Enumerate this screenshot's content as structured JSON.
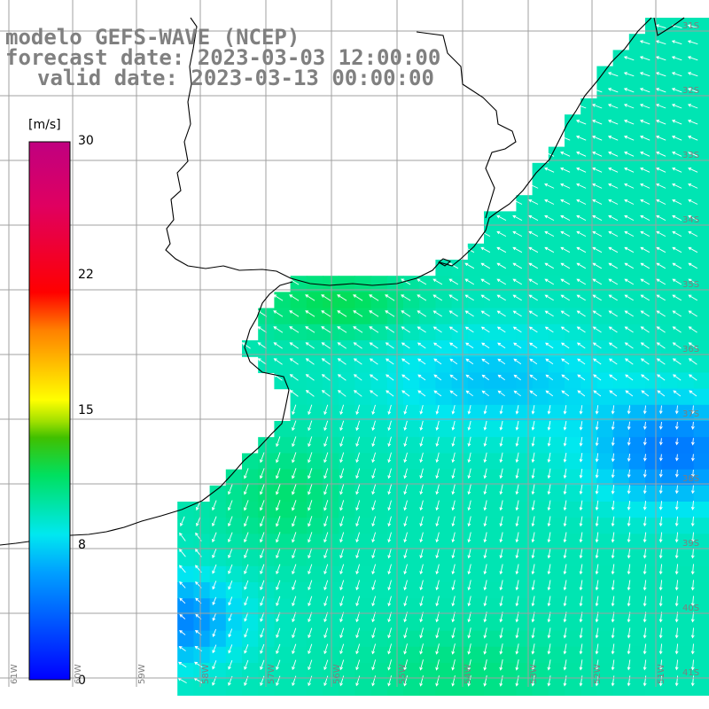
{
  "title": {
    "line1": "modelo GEFS-WAVE (NCEP)",
    "line2": "forecast date: 2023-03-03 12:00:00",
    "line3": "valid date: 2023-03-13 00:00:00"
  },
  "colorbar": {
    "unit": "[m/s]",
    "ticks": [
      "30",
      "22",
      "15",
      "8",
      "0"
    ],
    "tick_values": [
      30,
      22,
      15,
      8,
      0
    ],
    "range": [
      0,
      30
    ],
    "colors": [
      "#0000ff",
      "#00a0ff",
      "#00e8f0",
      "#00e060",
      "#40c000",
      "#a0e000",
      "#ffff00",
      "#ff8000",
      "#ff0000",
      "#e00060",
      "#c00080"
    ]
  },
  "map": {
    "variable": "wind speed and direction",
    "lat_labels": [
      "31S",
      "32S",
      "33S",
      "34S",
      "35S",
      "36S",
      "37S",
      "38S",
      "39S",
      "40S",
      "41S"
    ],
    "lon_labels": [
      "61W",
      "60W",
      "59W",
      "58W",
      "57W",
      "56W",
      "55W",
      "54W",
      "53W",
      "52W",
      "51W"
    ],
    "land_color": "#ffffff",
    "coast_color": "#000000",
    "arrow_color": "#ffffff",
    "grid_color": "#a0a0a0"
  }
}
